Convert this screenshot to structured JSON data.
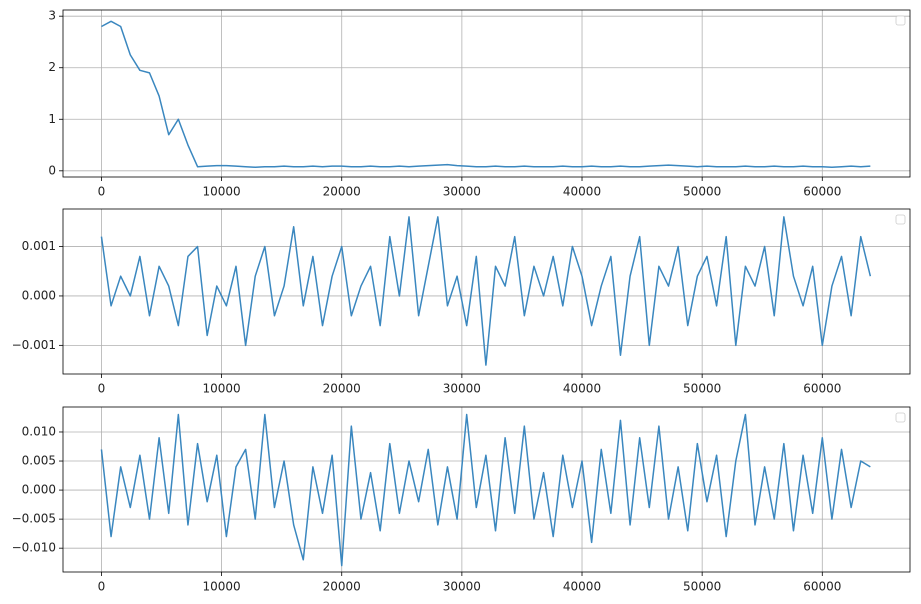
{
  "chart_data": [
    {
      "type": "line",
      "xlim": [
        -3200,
        67300
      ],
      "ylim": [
        -0.12,
        3.12
      ],
      "xticks": [
        0,
        10000,
        20000,
        30000,
        40000,
        50000,
        60000
      ],
      "yticks": [
        0,
        1,
        2,
        3
      ],
      "grid": true,
      "x": [
        0,
        800,
        1600,
        2400,
        3200,
        4000,
        4800,
        5600,
        6400,
        7200,
        8000,
        8800,
        9600,
        10400,
        11200,
        12000,
        12800,
        13600,
        14400,
        15200,
        16000,
        16800,
        17600,
        18400,
        19200,
        20000,
        20800,
        21600,
        22400,
        23200,
        24000,
        24800,
        25600,
        26400,
        27200,
        28000,
        28800,
        29600,
        30400,
        31200,
        32000,
        32800,
        33600,
        34400,
        35200,
        36000,
        36800,
        37600,
        38400,
        39200,
        40000,
        40800,
        41600,
        42400,
        43200,
        44000,
        44800,
        45600,
        46400,
        47200,
        48000,
        48800,
        49600,
        50400,
        51200,
        52000,
        52800,
        53600,
        54400,
        55200,
        56000,
        56800,
        57600,
        58400,
        59200,
        60000,
        60800,
        61600,
        62400,
        63200,
        64000
      ],
      "series": [
        {
          "color": "#3a87bf",
          "values": [
            2.8,
            2.9,
            2.8,
            2.25,
            1.95,
            1.9,
            1.45,
            0.7,
            1.0,
            0.5,
            0.08,
            0.09,
            0.1,
            0.1,
            0.09,
            0.08,
            0.07,
            0.08,
            0.08,
            0.09,
            0.08,
            0.08,
            0.09,
            0.08,
            0.09,
            0.09,
            0.08,
            0.08,
            0.09,
            0.08,
            0.08,
            0.09,
            0.08,
            0.09,
            0.1,
            0.11,
            0.12,
            0.1,
            0.09,
            0.08,
            0.08,
            0.09,
            0.08,
            0.08,
            0.09,
            0.08,
            0.08,
            0.08,
            0.09,
            0.08,
            0.08,
            0.09,
            0.08,
            0.08,
            0.09,
            0.08,
            0.08,
            0.09,
            0.1,
            0.11,
            0.1,
            0.09,
            0.08,
            0.09,
            0.08,
            0.08,
            0.08,
            0.09,
            0.08,
            0.08,
            0.09,
            0.08,
            0.08,
            0.09,
            0.08,
            0.08,
            0.07,
            0.08,
            0.09,
            0.08,
            0.09
          ]
        }
      ]
    },
    {
      "type": "line",
      "xlim": [
        -3200,
        67300
      ],
      "ylim": [
        -0.00158,
        0.00176
      ],
      "xticks": [
        0,
        10000,
        20000,
        30000,
        40000,
        50000,
        60000
      ],
      "yticks": [
        {
          "value": -0.001,
          "label": "−0.001"
        },
        {
          "value": 0,
          "label": "0.000"
        },
        {
          "value": 0.001,
          "label": "0.001"
        }
      ],
      "grid": true,
      "x": [
        0,
        800,
        1600,
        2400,
        3200,
        4000,
        4800,
        5600,
        6400,
        7200,
        8000,
        8800,
        9600,
        10400,
        11200,
        12000,
        12800,
        13600,
        14400,
        15200,
        16000,
        16800,
        17600,
        18400,
        19200,
        20000,
        20800,
        21600,
        22400,
        23200,
        24000,
        24800,
        25600,
        26400,
        27200,
        28000,
        28800,
        29600,
        30400,
        31200,
        32000,
        32800,
        33600,
        34400,
        35200,
        36000,
        36800,
        37600,
        38400,
        39200,
        40000,
        40800,
        41600,
        42400,
        43200,
        44000,
        44800,
        45600,
        46400,
        47200,
        48000,
        48800,
        49600,
        50400,
        51200,
        52000,
        52800,
        53600,
        54400,
        55200,
        56000,
        56800,
        57600,
        58400,
        59200,
        60000,
        60800,
        61600,
        62400,
        63200,
        64000
      ],
      "series": [
        {
          "color": "#3a87bf",
          "values": [
            0.0012,
            -0.0002,
            0.0004,
            0,
            0.0008,
            -0.0004,
            0.0006,
            0.0002,
            -0.0006,
            0.0008,
            0.001,
            -0.0008,
            0.0002,
            -0.0002,
            0.0006,
            -0.001,
            0.0004,
            0.001,
            -0.0004,
            0.0002,
            0.0014,
            -0.0002,
            0.0008,
            -0.0006,
            0.0004,
            0.001,
            -0.0004,
            0.0002,
            0.0006,
            -0.0006,
            0.0012,
            0,
            0.0016,
            -0.0004,
            0.0006,
            0.0016,
            -0.0002,
            0.0004,
            -0.0006,
            0.0008,
            -0.0014,
            0.0006,
            0.0002,
            0.0012,
            -0.0004,
            0.0006,
            0,
            0.0008,
            -0.0002,
            0.001,
            0.0004,
            -0.0006,
            0.0002,
            0.0008,
            -0.0012,
            0.0004,
            0.0012,
            -0.001,
            0.0006,
            0.0002,
            0.001,
            -0.0006,
            0.0004,
            0.0008,
            -0.0002,
            0.0012,
            -0.001,
            0.0006,
            0.0002,
            0.001,
            -0.0004,
            0.0016,
            0.0004,
            -0.0002,
            0.0006,
            -0.001,
            0.0002,
            0.0008,
            -0.0004,
            0.0012,
            0.0004
          ]
        }
      ]
    },
    {
      "type": "line",
      "xlim": [
        -3200,
        67300
      ],
      "ylim": [
        -0.0141,
        0.0143
      ],
      "xticks": [
        0,
        10000,
        20000,
        30000,
        40000,
        50000,
        60000
      ],
      "yticks": [
        {
          "value": -0.01,
          "label": "−0.010"
        },
        {
          "value": -0.005,
          "label": "−0.005"
        },
        {
          "value": 0,
          "label": "0.000"
        },
        {
          "value": 0.005,
          "label": "0.005"
        },
        {
          "value": 0.01,
          "label": "0.010"
        }
      ],
      "grid": true,
      "x": [
        0,
        800,
        1600,
        2400,
        3200,
        4000,
        4800,
        5600,
        6400,
        7200,
        8000,
        8800,
        9600,
        10400,
        11200,
        12000,
        12800,
        13600,
        14400,
        15200,
        16000,
        16800,
        17600,
        18400,
        19200,
        20000,
        20800,
        21600,
        22400,
        23200,
        24000,
        24800,
        25600,
        26400,
        27200,
        28000,
        28800,
        29600,
        30400,
        31200,
        32000,
        32800,
        33600,
        34400,
        35200,
        36000,
        36800,
        37600,
        38400,
        39200,
        40000,
        40800,
        41600,
        42400,
        43200,
        44000,
        44800,
        45600,
        46400,
        47200,
        48000,
        48800,
        49600,
        50400,
        51200,
        52000,
        52800,
        53600,
        54400,
        55200,
        56000,
        56800,
        57600,
        58400,
        59200,
        60000,
        60800,
        61600,
        62400,
        63200,
        64000
      ],
      "series": [
        {
          "color": "#3a87bf",
          "values": [
            0.007,
            -0.008,
            0.004,
            -0.003,
            0.006,
            -0.005,
            0.009,
            -0.004,
            0.013,
            -0.006,
            0.008,
            -0.002,
            0.006,
            -0.008,
            0.004,
            0.007,
            -0.005,
            0.013,
            -0.003,
            0.005,
            -0.006,
            -0.012,
            0.004,
            -0.004,
            0.006,
            -0.013,
            0.011,
            -0.005,
            0.003,
            -0.007,
            0.008,
            -0.004,
            0.005,
            -0.002,
            0.007,
            -0.006,
            0.004,
            -0.005,
            0.013,
            -0.003,
            0.006,
            -0.007,
            0.009,
            -0.004,
            0.011,
            -0.005,
            0.003,
            -0.008,
            0.006,
            -0.003,
            0.005,
            -0.009,
            0.007,
            -0.004,
            0.012,
            -0.006,
            0.009,
            -0.003,
            0.011,
            -0.005,
            0.004,
            -0.007,
            0.008,
            -0.002,
            0.006,
            -0.008,
            0.005,
            0.013,
            -0.006,
            0.004,
            -0.005,
            0.008,
            -0.007,
            0.006,
            -0.004,
            0.009,
            -0.005,
            0.007,
            -0.003,
            0.005,
            0.004
          ]
        }
      ]
    }
  ]
}
